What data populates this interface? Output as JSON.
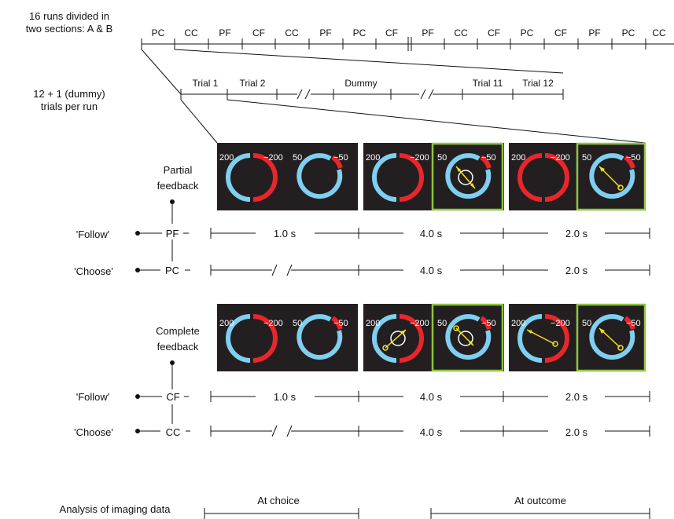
{
  "header": {
    "runs_label_1": "16 runs divided in",
    "runs_label_2": "two sections: A & B",
    "trials_label_1": "12 + 1 (dummy)",
    "trials_label_2": "trials per run"
  },
  "runs": [
    "PC",
    "CC",
    "PF",
    "CF",
    "CC",
    "PF",
    "PC",
    "CF",
    "PF",
    "CC",
    "CF",
    "PC",
    "CF",
    "PF",
    "PC",
    "CC"
  ],
  "trials": {
    "trial1": "Trial 1",
    "trial2": "Trial 2",
    "dummy": "Dummy",
    "trial11": "Trial 11",
    "trial12": "Trial 12"
  },
  "partial": {
    "title_1": "Partial",
    "title_2": "feedback",
    "follow_label": "'Follow'",
    "choose_label": "'Choose'",
    "follow_code": "PF",
    "choose_code": "PC",
    "t1": "1.0 s",
    "t2": "4.0 s",
    "t3": "2.0 s"
  },
  "complete": {
    "title_1": "Complete",
    "title_2": "feedback",
    "follow_label": "'Follow'",
    "choose_label": "'Choose'",
    "follow_code": "CF",
    "choose_code": "CC",
    "t1": "1.0 s",
    "t2": "4.0 s",
    "t3": "2.0 s"
  },
  "dial": {
    "left_value": "200",
    "right_value": "−200",
    "left_value_b": "50",
    "right_value_b": "−50"
  },
  "analysis": {
    "label": "Analysis of imaging data",
    "at_choice": "At choice",
    "at_outcome": "At outcome"
  },
  "colors": {
    "blue": "#7fcff0",
    "red": "#e8262b",
    "panel": "#231f20",
    "highlight": "#8dc63f",
    "arrow": "#f5e11a"
  }
}
